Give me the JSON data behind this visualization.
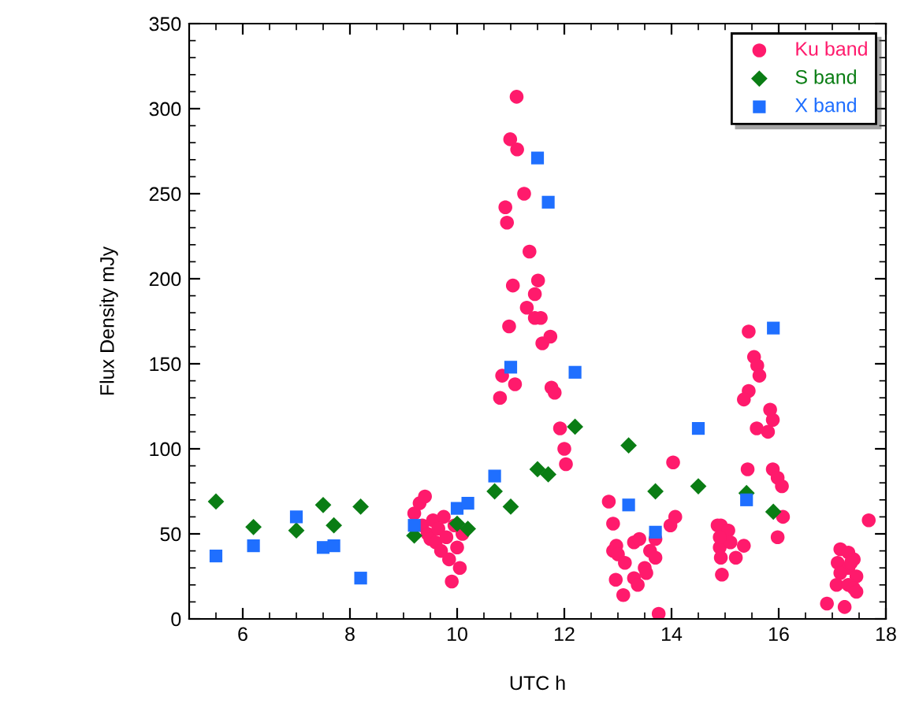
{
  "chart_data": {
    "type": "scatter",
    "xlabel": "UTC h",
    "ylabel": "Flux Density mJy",
    "xlim": [
      5,
      18
    ],
    "ylim": [
      0,
      350
    ],
    "xticks": [
      6,
      8,
      10,
      12,
      14,
      16,
      18
    ],
    "yticks": [
      0,
      50,
      100,
      150,
      200,
      250,
      300,
      350
    ],
    "grid": false,
    "legend": "top right",
    "series": [
      {
        "name": "Ku band",
        "color": "#ff1a6c",
        "marker": "circle",
        "x": [
          9.2,
          9.3,
          9.4,
          9.35,
          9.45,
          9.5,
          9.55,
          9.6,
          9.65,
          9.7,
          9.75,
          9.8,
          9.85,
          9.9,
          9.95,
          10.0,
          10.05,
          10.1,
          11.11,
          10.99,
          11.12,
          11.25,
          10.9,
          10.93,
          11.35,
          11.04,
          11.51,
          11.45,
          11.3,
          11.45,
          11.56,
          10.97,
          11.74,
          11.59,
          10.84,
          11.08,
          10.8,
          11.76,
          11.82,
          11.92,
          12.0,
          12.03,
          12.83,
          12.91,
          12.91,
          12.97,
          13.0,
          12.96,
          13.1,
          13.13,
          13.3,
          13.4,
          13.3,
          13.37,
          13.5,
          13.53,
          13.6,
          13.7,
          13.98,
          14.07,
          14.03,
          13.76,
          13.7,
          14.86,
          14.92,
          15.06,
          14.9,
          15.1,
          15.2,
          14.92,
          14.94,
          15.35,
          14.9,
          15.44,
          15.54,
          15.6,
          15.64,
          15.44,
          15.35,
          15.59,
          15.84,
          15.89,
          15.8,
          15.42,
          15.89,
          15.98,
          16.06,
          16.08,
          15.98,
          17.68,
          17.15,
          17.3,
          17.4,
          17.1,
          17.3,
          17.35,
          17.15,
          17.45,
          17.08,
          17.3,
          17.4,
          16.9,
          17.23,
          17.45
        ],
        "values": [
          62,
          68,
          72,
          55,
          50,
          47,
          58,
          45,
          53,
          40,
          60,
          48,
          35,
          22,
          55,
          42,
          30,
          50,
          307,
          282,
          276,
          250,
          242,
          233,
          216,
          196,
          199,
          191,
          183,
          177,
          177,
          172,
          166,
          162,
          143,
          138,
          130,
          136,
          133,
          112,
          100,
          91,
          69,
          56,
          40,
          43,
          38,
          23,
          14,
          33,
          45,
          47,
          24,
          20,
          30,
          27,
          40,
          47,
          55,
          60,
          92,
          3,
          36,
          55,
          55,
          52,
          42,
          45,
          36,
          36,
          26,
          43,
          48,
          169,
          154,
          149,
          143,
          134,
          129,
          112,
          123,
          117,
          110,
          88,
          88,
          83,
          78,
          60,
          48,
          58,
          41,
          39,
          35,
          33,
          30,
          33,
          27,
          25,
          20,
          20,
          18,
          9,
          7,
          16
        ]
      },
      {
        "name": "S band",
        "color": "#0a7d14",
        "marker": "diamond",
        "x": [
          5.5,
          6.2,
          7.0,
          7.5,
          7.7,
          8.2,
          9.2,
          10.0,
          10.2,
          10.7,
          11.0,
          11.5,
          11.7,
          12.2,
          13.2,
          13.7,
          14.5,
          15.4,
          15.9
        ],
        "values": [
          69,
          54,
          52,
          67,
          55,
          66,
          49,
          56,
          53,
          75,
          66,
          88,
          85,
          113,
          102,
          75,
          78,
          74,
          63
        ]
      },
      {
        "name": "X band",
        "color": "#1f6fff",
        "marker": "square",
        "x": [
          5.5,
          6.2,
          7.0,
          7.5,
          7.7,
          8.2,
          9.2,
          10.0,
          10.2,
          10.7,
          11.0,
          11.5,
          11.7,
          12.2,
          13.2,
          13.7,
          14.5,
          15.4,
          15.9
        ],
        "values": [
          37,
          43,
          60,
          42,
          43,
          24,
          55,
          65,
          68,
          84,
          148,
          271,
          245,
          145,
          67,
          51,
          112,
          70,
          171
        ]
      }
    ]
  }
}
